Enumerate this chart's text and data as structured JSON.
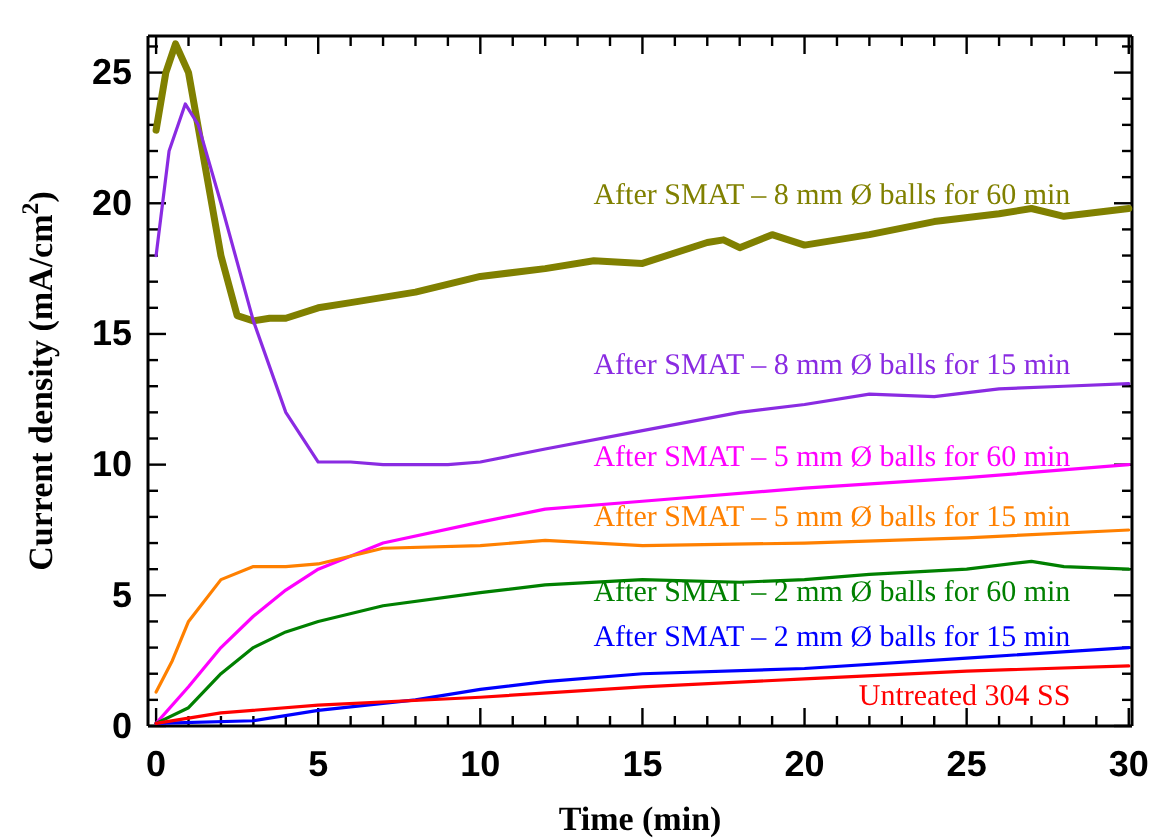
{
  "chart_data": {
    "type": "line",
    "xlabel": "Time (min)",
    "ylabel": "Current density (mA/cm$^{2}$)",
    "xlim": [
      -0.25,
      30.1
    ],
    "ylim": [
      0,
      26.4
    ],
    "xticks": [
      0,
      {
        "value": 1,
        "label": null
      },
      {
        "value": 2,
        "label": null
      },
      {
        "value": 3,
        "label": null
      },
      {
        "value": 4,
        "label": null
      },
      5,
      {
        "value": 6,
        "label": null
      },
      {
        "value": 7,
        "label": null
      },
      {
        "value": 8,
        "label": null
      },
      {
        "value": 9,
        "label": null
      },
      10,
      {
        "value": 11,
        "label": null
      },
      {
        "value": 12,
        "label": null
      },
      {
        "value": 13,
        "label": null
      },
      {
        "value": 14,
        "label": null
      },
      15,
      {
        "value": 16,
        "label": null
      },
      {
        "value": 17,
        "label": null
      },
      {
        "value": 18,
        "label": null
      },
      {
        "value": 19,
        "label": null
      },
      20,
      {
        "value": 21,
        "label": null
      },
      {
        "value": 22,
        "label": null
      },
      {
        "value": 23,
        "label": null
      },
      {
        "value": 24,
        "label": null
      },
      25,
      {
        "value": 26,
        "label": null
      },
      {
        "value": 27,
        "label": null
      },
      {
        "value": 28,
        "label": null
      },
      {
        "value": 29,
        "label": null
      },
      30
    ],
    "yticks": [
      0,
      {
        "value": 1,
        "label": null
      },
      {
        "value": 2,
        "label": null
      },
      {
        "value": 3,
        "label": null
      },
      {
        "value": 4,
        "label": null
      },
      5,
      {
        "value": 6,
        "label": null
      },
      {
        "value": 7,
        "label": null
      },
      {
        "value": 8,
        "label": null
      },
      {
        "value": 9,
        "label": null
      },
      10,
      {
        "value": 11,
        "label": null
      },
      {
        "value": 12,
        "label": null
      },
      {
        "value": 13,
        "label": null
      },
      {
        "value": 14,
        "label": null
      },
      15,
      {
        "value": 16,
        "label": null
      },
      {
        "value": 17,
        "label": null
      },
      {
        "value": 18,
        "label": null
      },
      {
        "value": 19,
        "label": null
      },
      20,
      {
        "value": 21,
        "label": null
      },
      {
        "value": 22,
        "label": null
      },
      {
        "value": 23,
        "label": null
      },
      {
        "value": 24,
        "label": null
      },
      25,
      {
        "value": 26,
        "label": null
      }
    ],
    "grid": false,
    "legend": false,
    "marker": "none",
    "line_style": "solid",
    "series": [
      {
        "name": "After SMAT – 8 mm Ø balls for 60 min",
        "color": "#808000",
        "x": [
          0,
          0.3,
          0.6,
          1,
          1.5,
          2,
          2.5,
          3,
          3.5,
          4,
          5,
          6,
          8,
          10,
          12,
          13.5,
          15,
          17,
          17.5,
          18,
          19,
          20,
          22,
          24,
          26,
          27,
          28,
          30
        ],
        "values": [
          22.8,
          25,
          26.1,
          25,
          21.5,
          18,
          15.7,
          15.5,
          15.6,
          15.6,
          16.0,
          16.2,
          16.6,
          17.2,
          17.5,
          17.8,
          17.7,
          18.5,
          18.6,
          18.3,
          18.8,
          18.4,
          18.8,
          19.3,
          19.6,
          19.8,
          19.5,
          19.8
        ]
      },
      {
        "name": "After SMAT – 8 mm Ø balls for 15 min",
        "color": "#8a2be2",
        "x": [
          0,
          0.4,
          0.9,
          1.3,
          2,
          3,
          4,
          5,
          6,
          7,
          9,
          10,
          12,
          15,
          18,
          20,
          22,
          24,
          26,
          28,
          30
        ],
        "values": [
          18,
          22,
          23.8,
          23,
          20,
          15.5,
          12,
          10.1,
          10.1,
          10.0,
          10.0,
          10.1,
          10.6,
          11.3,
          12.0,
          12.3,
          12.7,
          12.6,
          12.9,
          13.0,
          13.1
        ]
      },
      {
        "name": "After SMAT – 5 mm Ø balls for 60 min",
        "color": "#ff00ff",
        "x": [
          0,
          1,
          2,
          3,
          4,
          5,
          7,
          10,
          12,
          15,
          20,
          25,
          30
        ],
        "values": [
          0.1,
          1.5,
          3.0,
          4.2,
          5.2,
          6.0,
          7.0,
          7.8,
          8.3,
          8.6,
          9.1,
          9.5,
          10.0
        ]
      },
      {
        "name": "After SMAT – 5 mm Ø balls for 15 min",
        "color": "#ff8000",
        "x": [
          0,
          0.5,
          1,
          2,
          3,
          4,
          5,
          7,
          10,
          12,
          15,
          20,
          25,
          30
        ],
        "values": [
          1.3,
          2.5,
          4.0,
          5.6,
          6.1,
          6.1,
          6.2,
          6.8,
          6.9,
          7.1,
          6.9,
          7.0,
          7.2,
          7.5
        ]
      },
      {
        "name": "After SMAT – 2 mm Ø balls for 60 min",
        "color": "#008000",
        "x": [
          0,
          1,
          2,
          3,
          4,
          5,
          7,
          10,
          12,
          15,
          18,
          20,
          22,
          25,
          27,
          28,
          30
        ],
        "values": [
          0.1,
          0.7,
          2.0,
          3.0,
          3.6,
          4.0,
          4.6,
          5.1,
          5.4,
          5.6,
          5.5,
          5.6,
          5.8,
          6.0,
          6.3,
          6.1,
          6.0
        ]
      },
      {
        "name": "After SMAT – 2 mm Ø balls for 15 min",
        "color": "#0000ff",
        "x": [
          0,
          3,
          5,
          8,
          10,
          12,
          15,
          20,
          25,
          30
        ],
        "values": [
          0.1,
          0.2,
          0.6,
          1.0,
          1.4,
          1.7,
          2.0,
          2.2,
          2.6,
          3.0
        ]
      },
      {
        "name": "Untreated 304 SS",
        "color": "#ff0000",
        "x": [
          0,
          2,
          5,
          10,
          15,
          20,
          25,
          30
        ],
        "values": [
          0.1,
          0.5,
          0.8,
          1.1,
          1.5,
          1.8,
          2.1,
          2.3
        ]
      }
    ]
  }
}
